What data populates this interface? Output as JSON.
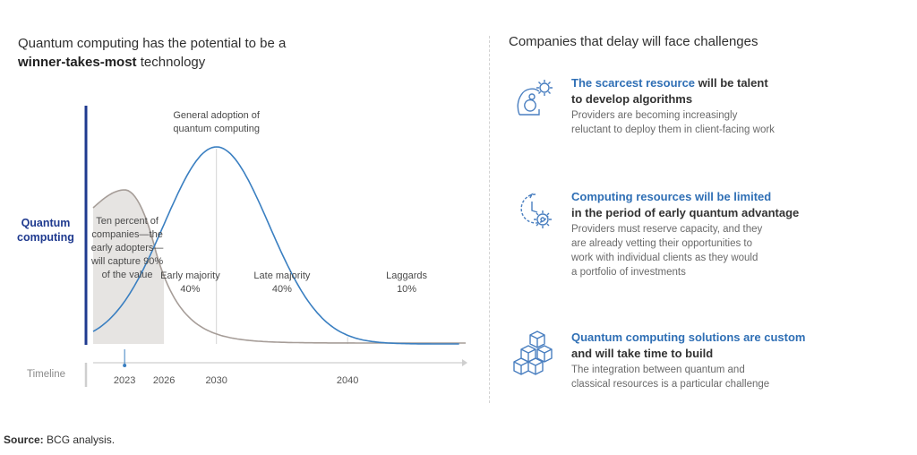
{
  "left": {
    "headline_line1": "Quantum computing has the potential to be a",
    "headline_bold": "winner-takes-most",
    "headline_rest": " technology",
    "ylabel_line1": "Quantum",
    "ylabel_line2": "computing",
    "timeline_label": "Timeline"
  },
  "chart_data": {
    "type": "area",
    "x_ticks": [
      2023,
      2026,
      2030,
      2040
    ],
    "x_marker": 2023,
    "series": [
      {
        "name": "Adoption bell curve",
        "style": "line",
        "color": "#3a7fc1",
        "description": "Normal adoption curve peaking around 2030"
      },
      {
        "name": "Value captured by early adopters",
        "style": "line",
        "color": "#a69d98",
        "description": "High plateau before 2026, then decays toward the baseline"
      }
    ],
    "segments": [
      {
        "name": "Early adopters",
        "label": [
          "Ten percent of",
          "companies—the",
          "early adopters—",
          "will capture 90%",
          "of the value"
        ],
        "range": [
          2020.6,
          2026
        ],
        "shaded": true
      },
      {
        "name": "Early majority",
        "label": [
          "Early majority",
          "40%"
        ],
        "range": [
          2026,
          2030
        ]
      },
      {
        "name": "Late majority",
        "label": [
          "Late majority",
          "40%"
        ],
        "range": [
          2030,
          2040
        ]
      },
      {
        "name": "Laggards",
        "label": [
          "Laggards",
          "10%"
        ],
        "range": [
          2040,
          2049
        ]
      }
    ],
    "annotations": [
      {
        "text": [
          "General adoption of",
          "quantum computing"
        ],
        "at": 2030
      }
    ]
  },
  "right": {
    "heading": "Companies that delay will face challenges",
    "items": [
      {
        "icon": "talent-gear-icon",
        "title_hl": "The scarcest resource",
        "title_rest1": " will be talent",
        "title_line2": "to develop algorithms",
        "desc": [
          "Providers are becoming increasingly",
          "reluctant to deploy them in client-facing work"
        ]
      },
      {
        "icon": "clock-gear-icon",
        "title_hl": "Computing resources will be limited",
        "title_rest1": "",
        "title_line2": "in the period of early quantum advantage",
        "desc": [
          "Providers must reserve capacity, and they",
          "are already vetting their opportunities to",
          "work with individual clients as they would",
          "a portfolio of investments"
        ]
      },
      {
        "icon": "cubes-icon",
        "title_hl": "Quantum computing solutions are custom",
        "title_rest1": "",
        "title_line2": "and will take time to build",
        "desc": [
          "The integration between quantum and",
          "classical resources is a particular challenge"
        ]
      }
    ]
  },
  "source": {
    "label": "Source:",
    "text": " BCG analysis."
  },
  "colors": {
    "blue_curve": "#3a7fc1",
    "grey_curve": "#a69d98",
    "axis_blue": "#1f3a8f",
    "shade": "#e6e4e2",
    "icon_blue": "#4a7fc0"
  }
}
